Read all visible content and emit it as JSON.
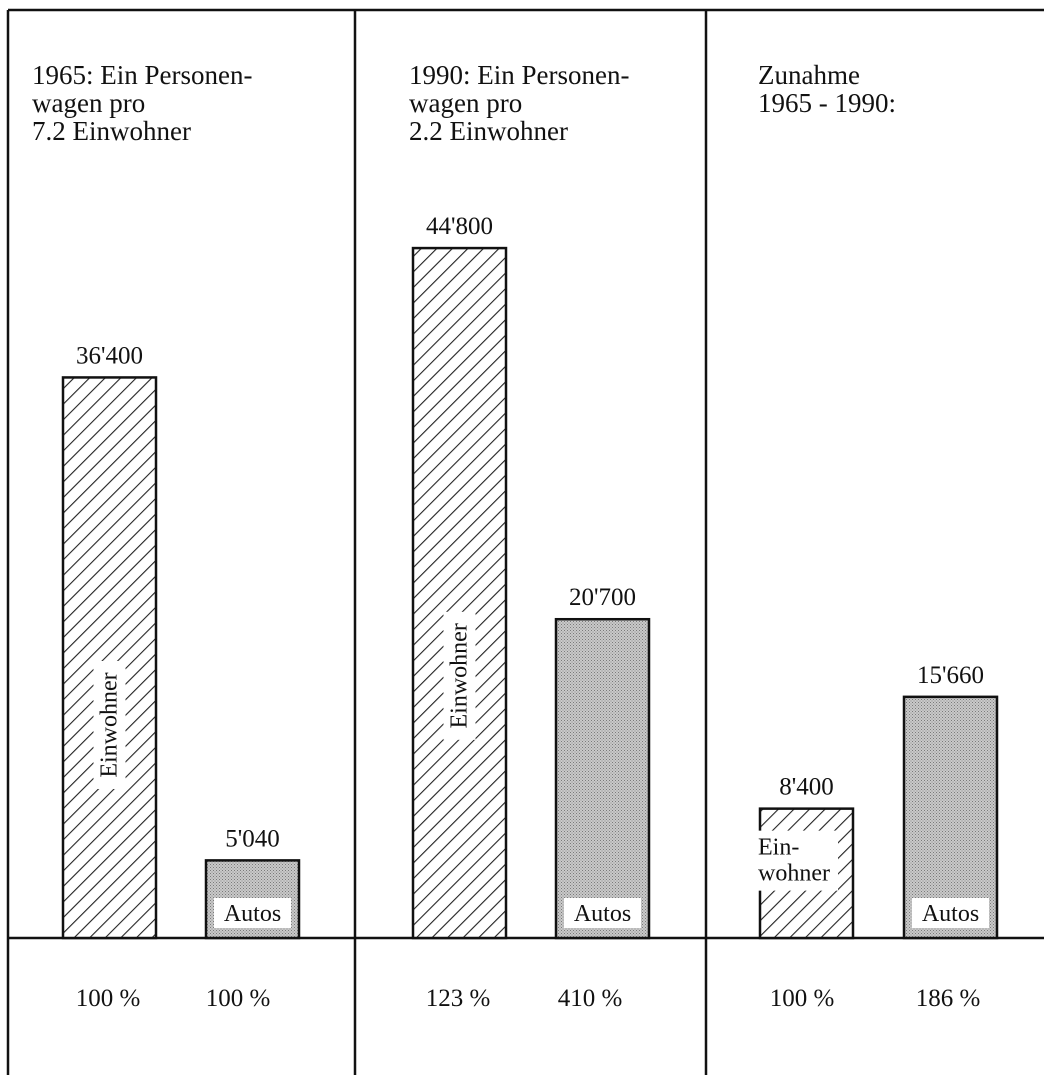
{
  "panels": [
    {
      "heading": [
        "1965: Ein Personen-",
        "wagen pro",
        "7.2 Einwohner"
      ],
      "bars": [
        {
          "type": "einwohner",
          "value": 36400,
          "value_label": "36'400",
          "inner_label": "Einwohner",
          "percent": "100 %"
        },
        {
          "type": "autos",
          "value": 5040,
          "value_label": "5'040",
          "inner_label": "Autos",
          "percent": "100 %"
        }
      ]
    },
    {
      "heading": [
        "1990: Ein Personen-",
        "wagen pro",
        "2.2 Einwohner"
      ],
      "bars": [
        {
          "type": "einwohner",
          "value": 44800,
          "value_label": "44'800",
          "inner_label": "Einwohner",
          "percent": "123 %"
        },
        {
          "type": "autos",
          "value": 20700,
          "value_label": "20'700",
          "inner_label": "Autos",
          "percent": "410 %"
        }
      ]
    },
    {
      "heading": [
        "Zunahme",
        "1965 - 1990:"
      ],
      "bars": [
        {
          "type": "einwohner",
          "value": 8400,
          "value_label": "8'400",
          "inner_label": [
            "Ein-",
            "wohner"
          ],
          "percent": "100 %"
        },
        {
          "type": "autos",
          "value": 15660,
          "value_label": "15'660",
          "inner_label": "Autos",
          "percent": "186 %"
        }
      ]
    }
  ],
  "chart_data": {
    "type": "bar",
    "categories": [
      "1965",
      "1990",
      "Zunahme 1965 - 1990"
    ],
    "series": [
      {
        "name": "Einwohner",
        "values": [
          36400,
          44800,
          8400
        ]
      },
      {
        "name": "Autos",
        "values": [
          5040,
          20700,
          15660
        ]
      }
    ],
    "percent_labels": {
      "Einwohner": [
        "100 %",
        "123 %",
        "100 %"
      ],
      "Autos": [
        "100 %",
        "410 %",
        "186 %"
      ]
    },
    "title": "",
    "xlabel": "",
    "ylabel": "",
    "ylim": [
      0,
      50000
    ],
    "grid": false,
    "colors": {
      "einwohner_hatch": "#222222",
      "autos_fill": "#bdbdbd",
      "frame": "#111111"
    }
  }
}
